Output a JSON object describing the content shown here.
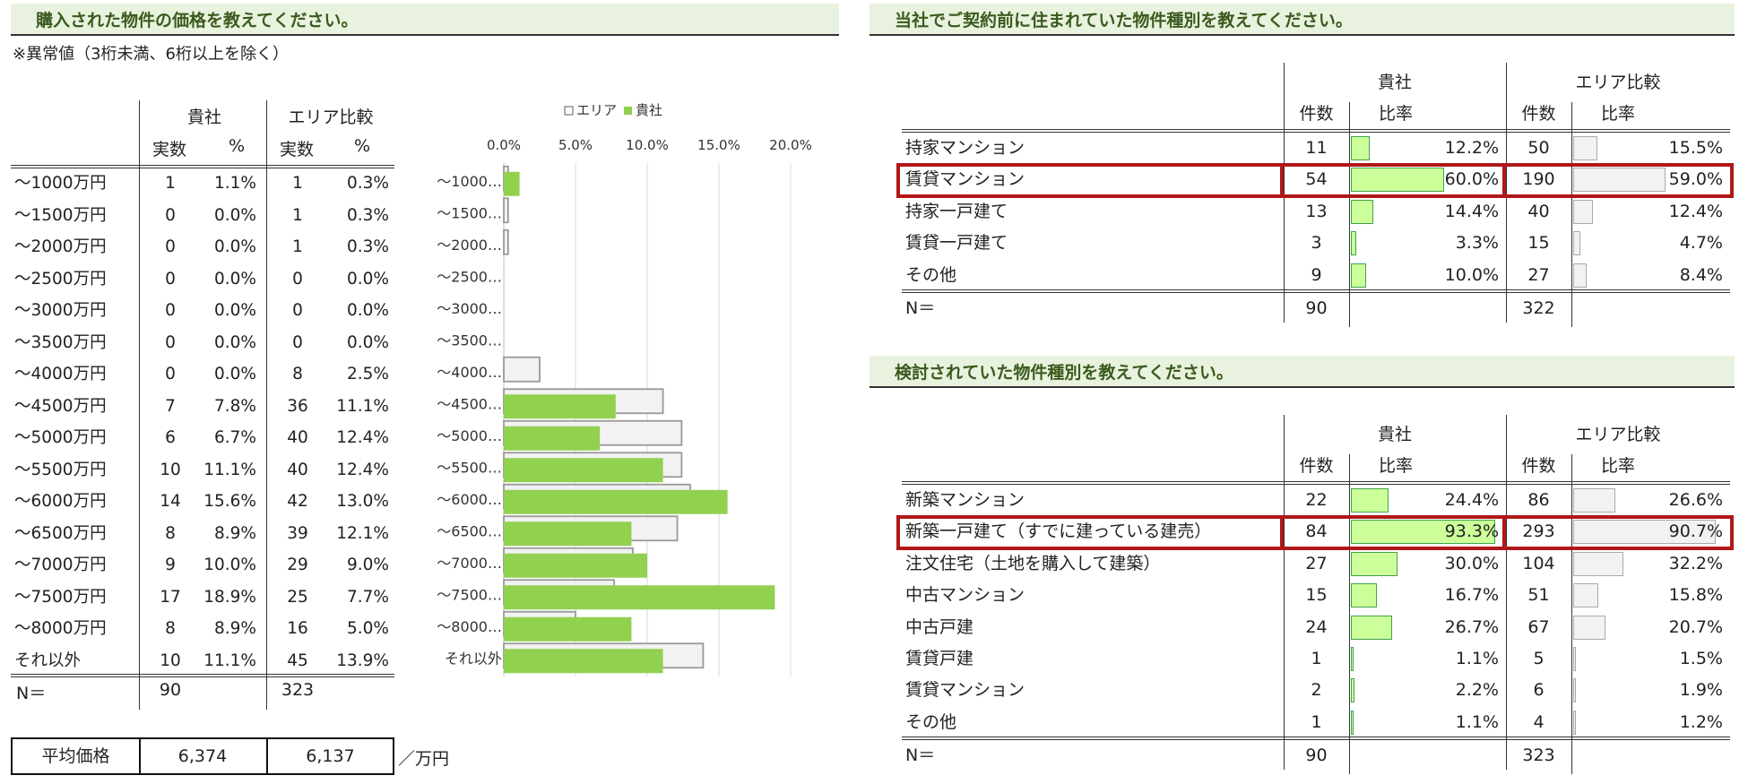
{
  "left": {
    "title": "購入された物件の価格を教えてください。",
    "note": "※異常値（3桁未満、6桁以上を除く）",
    "group_own": "貴社",
    "group_area": "エリア比較",
    "col_count": "実数",
    "col_pct": "%",
    "rows": [
      {
        "label": "～1000万円",
        "own_n": "1",
        "own_p": "1.1%",
        "area_n": "1",
        "area_p": "0.3%"
      },
      {
        "label": "～1500万円",
        "own_n": "0",
        "own_p": "0.0%",
        "area_n": "1",
        "area_p": "0.3%"
      },
      {
        "label": "～2000万円",
        "own_n": "0",
        "own_p": "0.0%",
        "area_n": "1",
        "area_p": "0.3%"
      },
      {
        "label": "～2500万円",
        "own_n": "0",
        "own_p": "0.0%",
        "area_n": "0",
        "area_p": "0.0%"
      },
      {
        "label": "～3000万円",
        "own_n": "0",
        "own_p": "0.0%",
        "area_n": "0",
        "area_p": "0.0%"
      },
      {
        "label": "～3500万円",
        "own_n": "0",
        "own_p": "0.0%",
        "area_n": "0",
        "area_p": "0.0%"
      },
      {
        "label": "～4000万円",
        "own_n": "0",
        "own_p": "0.0%",
        "area_n": "8",
        "area_p": "2.5%"
      },
      {
        "label": "～4500万円",
        "own_n": "7",
        "own_p": "7.8%",
        "area_n": "36",
        "area_p": "11.1%"
      },
      {
        "label": "～5000万円",
        "own_n": "6",
        "own_p": "6.7%",
        "area_n": "40",
        "area_p": "12.4%"
      },
      {
        "label": "～5500万円",
        "own_n": "10",
        "own_p": "11.1%",
        "area_n": "40",
        "area_p": "12.4%"
      },
      {
        "label": "～6000万円",
        "own_n": "14",
        "own_p": "15.6%",
        "area_n": "42",
        "area_p": "13.0%"
      },
      {
        "label": "～6500万円",
        "own_n": "8",
        "own_p": "8.9%",
        "area_n": "39",
        "area_p": "12.1%"
      },
      {
        "label": "～7000万円",
        "own_n": "9",
        "own_p": "10.0%",
        "area_n": "29",
        "area_p": "9.0%"
      },
      {
        "label": "～7500万円",
        "own_n": "17",
        "own_p": "18.9%",
        "area_n": "25",
        "area_p": "7.7%"
      },
      {
        "label": "～8000万円",
        "own_n": "8",
        "own_p": "8.9%",
        "area_n": "16",
        "area_p": "5.0%"
      },
      {
        "label": "それ以外",
        "own_n": "10",
        "own_p": "11.1%",
        "area_n": "45",
        "area_p": "13.9%"
      }
    ],
    "n_label": "N＝",
    "n_own": "90",
    "n_area": "323",
    "avg_label": "平均価格",
    "avg_own": "6,374",
    "avg_area": "6,137",
    "avg_unit": "／万円"
  },
  "chart_data": {
    "type": "bar",
    "orientation": "horizontal",
    "categories": [
      "～1000…",
      "～1500…",
      "～2000…",
      "～2500…",
      "～3000…",
      "～3500…",
      "～4000…",
      "～4500…",
      "～5000…",
      "～5500…",
      "～6000…",
      "～6500…",
      "～7000…",
      "～7500…",
      "～8000…",
      "それ以外"
    ],
    "series": [
      {
        "name": "エリア",
        "values": [
          0.3,
          0.3,
          0.3,
          0.0,
          0.0,
          0.0,
          2.5,
          11.1,
          12.4,
          12.4,
          13.0,
          12.1,
          9.0,
          7.7,
          5.0,
          13.9
        ],
        "color": "#f2f2f2",
        "stroke": "#999999"
      },
      {
        "name": "貴社",
        "values": [
          1.1,
          0.0,
          0.0,
          0.0,
          0.0,
          0.0,
          0.0,
          7.8,
          6.7,
          11.1,
          15.6,
          8.9,
          10.0,
          18.9,
          8.9,
          11.1
        ],
        "color": "#92d050"
      }
    ],
    "xlim": [
      0,
      20
    ],
    "xticks": [
      "0.0%",
      "5.0%",
      "10.0%",
      "15.0%",
      "20.0%"
    ],
    "legend_own": "貴社",
    "legend_area": "エリア",
    "legend": "top",
    "grid": true
  },
  "right1": {
    "title": "当社でご契約前に住まれていた物件種別を教えてください。",
    "group_own": "貴社",
    "group_area": "エリア比較",
    "col_count": "件数",
    "col_ratio": "比率",
    "rows": [
      {
        "label": "持家マンション",
        "own_n": "11",
        "own_p": "12.2%",
        "own_v": 12.2,
        "area_n": "50",
        "area_p": "15.5%",
        "area_v": 15.5
      },
      {
        "label": "賃貸マンション",
        "own_n": "54",
        "own_p": "60.0%",
        "own_v": 60.0,
        "area_n": "190",
        "area_p": "59.0%",
        "area_v": 59.0,
        "highlight": true
      },
      {
        "label": "持家一戸建て",
        "own_n": "13",
        "own_p": "14.4%",
        "own_v": 14.4,
        "area_n": "40",
        "area_p": "12.4%",
        "area_v": 12.4
      },
      {
        "label": "賃貸一戸建て",
        "own_n": "3",
        "own_p": "3.3%",
        "own_v": 3.3,
        "area_n": "15",
        "area_p": "4.7%",
        "area_v": 4.7
      },
      {
        "label": "その他",
        "own_n": "9",
        "own_p": "10.0%",
        "own_v": 10.0,
        "area_n": "27",
        "area_p": "8.4%",
        "area_v": 8.4
      }
    ],
    "n_label": "N＝",
    "n_own": "90",
    "n_area": "322"
  },
  "right2": {
    "title": "検討されていた物件種別を教えてください。",
    "group_own": "貴社",
    "group_area": "エリア比較",
    "col_count": "件数",
    "col_ratio": "比率",
    "rows": [
      {
        "label": "新築マンション",
        "own_n": "22",
        "own_p": "24.4%",
        "own_v": 24.4,
        "area_n": "86",
        "area_p": "26.6%",
        "area_v": 26.6
      },
      {
        "label": "新築一戸建て（すでに建っている建売）",
        "own_n": "84",
        "own_p": "93.3%",
        "own_v": 93.3,
        "area_n": "293",
        "area_p": "90.7%",
        "area_v": 90.7,
        "highlight": true
      },
      {
        "label": "注文住宅（土地を購入して建築）",
        "own_n": "27",
        "own_p": "30.0%",
        "own_v": 30.0,
        "area_n": "104",
        "area_p": "32.2%",
        "area_v": 32.2
      },
      {
        "label": "中古マンション",
        "own_n": "15",
        "own_p": "16.7%",
        "own_v": 16.7,
        "area_n": "51",
        "area_p": "15.8%",
        "area_v": 15.8
      },
      {
        "label": "中古戸建",
        "own_n": "24",
        "own_p": "26.7%",
        "own_v": 26.7,
        "area_n": "67",
        "area_p": "20.7%",
        "area_v": 20.7
      },
      {
        "label": "賃貸戸建",
        "own_n": "1",
        "own_p": "1.1%",
        "own_v": 1.1,
        "area_n": "5",
        "area_p": "1.5%",
        "area_v": 1.5
      },
      {
        "label": "賃貸マンション",
        "own_n": "2",
        "own_p": "2.2%",
        "own_v": 2.2,
        "area_n": "6",
        "area_p": "1.9%",
        "area_v": 1.9
      },
      {
        "label": "その他",
        "own_n": "1",
        "own_p": "1.1%",
        "own_v": 1.1,
        "area_n": "4",
        "area_p": "1.2%",
        "area_v": 1.2
      }
    ],
    "n_label": "N＝",
    "n_own": "90",
    "n_area": "323"
  }
}
